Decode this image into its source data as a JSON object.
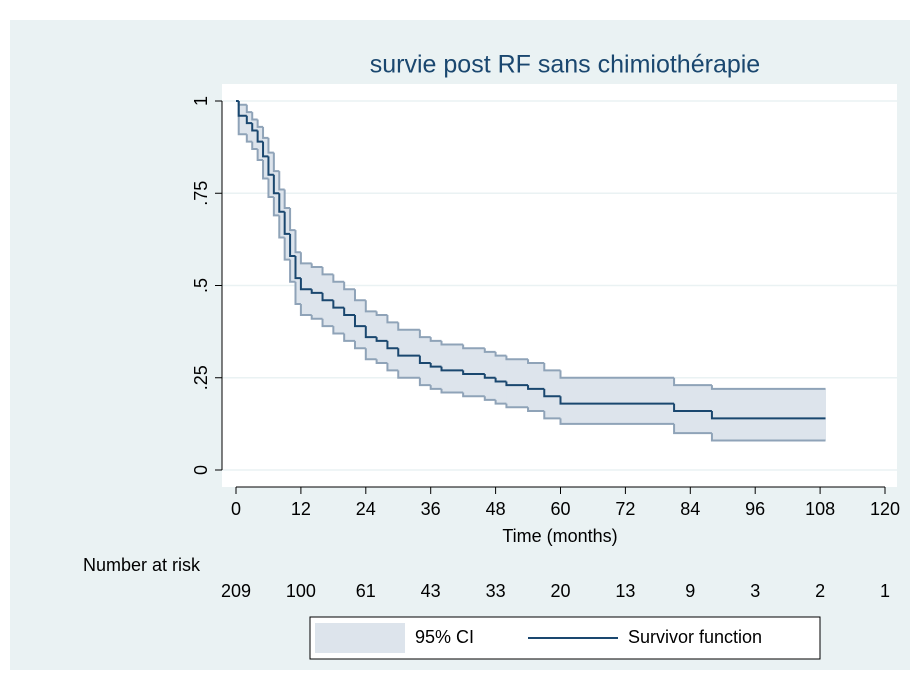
{
  "chart_data": {
    "type": "km",
    "title": "survie post RF sans chimiothérapie",
    "x_label": "Time (months)",
    "x": [
      0,
      0.5,
      2,
      3,
      4,
      5,
      6,
      7,
      8,
      9,
      10,
      11,
      12,
      14,
      16,
      18,
      20,
      22,
      24,
      26,
      28,
      30,
      34,
      36,
      38,
      42,
      46,
      48,
      50,
      54,
      57,
      60,
      81,
      88,
      109
    ],
    "series": [
      {
        "name": "95% CI",
        "color": "#dde4ec",
        "line_color": "#8fa3b8",
        "lower": [
          1,
          0.91,
          0.89,
          0.87,
          0.84,
          0.79,
          0.74,
          0.69,
          0.63,
          0.57,
          0.51,
          0.45,
          0.42,
          0.41,
          0.39,
          0.37,
          0.35,
          0.33,
          0.3,
          0.29,
          0.27,
          0.25,
          0.23,
          0.22,
          0.21,
          0.2,
          0.19,
          0.18,
          0.17,
          0.16,
          0.14,
          0.125,
          0.1,
          0.08,
          0.08
        ],
        "upper": [
          1,
          0.99,
          0.97,
          0.95,
          0.93,
          0.9,
          0.86,
          0.81,
          0.76,
          0.71,
          0.65,
          0.59,
          0.56,
          0.55,
          0.53,
          0.51,
          0.49,
          0.46,
          0.43,
          0.42,
          0.4,
          0.38,
          0.36,
          0.35,
          0.34,
          0.33,
          0.32,
          0.31,
          0.3,
          0.29,
          0.27,
          0.25,
          0.23,
          0.22,
          0.22
        ]
      },
      {
        "name": "Survivor function",
        "color": "#1a476f",
        "values": [
          1,
          0.96,
          0.94,
          0.92,
          0.89,
          0.85,
          0.8,
          0.75,
          0.7,
          0.64,
          0.58,
          0.52,
          0.49,
          0.48,
          0.46,
          0.44,
          0.42,
          0.39,
          0.36,
          0.35,
          0.33,
          0.31,
          0.29,
          0.28,
          0.27,
          0.26,
          0.25,
          0.24,
          0.23,
          0.22,
          0.2,
          0.18,
          0.16,
          0.14,
          0.14
        ]
      }
    ],
    "xlim": [
      0,
      120
    ],
    "xticks": [
      0,
      12,
      24,
      36,
      48,
      60,
      72,
      84,
      96,
      108,
      120
    ],
    "ylim": [
      0,
      1
    ],
    "yticks": [
      0,
      {
        "value": 0.25,
        "label": ".25"
      },
      {
        "value": 0.5,
        "label": ".5"
      },
      {
        "value": 0.75,
        "label": ".75"
      },
      1
    ],
    "grid": true,
    "legend": "bottom",
    "risk_table": {
      "label": "Number at risk",
      "times": [
        0,
        12,
        24,
        36,
        48,
        60,
        72,
        84,
        96,
        108,
        120
      ],
      "counts": [
        209,
        100,
        61,
        43,
        33,
        20,
        13,
        9,
        3,
        2,
        1
      ]
    }
  }
}
